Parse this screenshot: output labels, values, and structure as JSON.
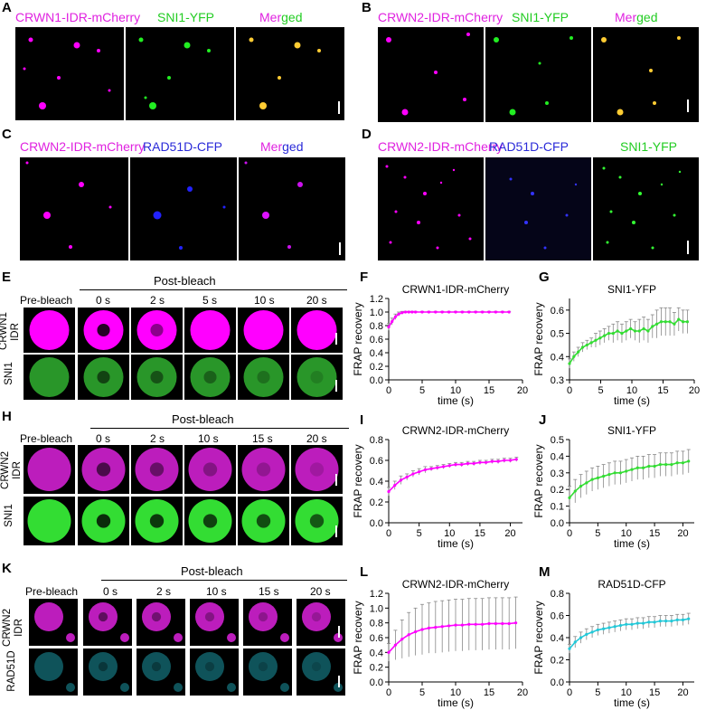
{
  "panels": {
    "A": {
      "letter": "A",
      "labels": [
        {
          "text": "CRWN1-IDR-mCherry",
          "color": "#e022e0"
        },
        {
          "text": "SNI1-YFP",
          "color": "#22cc22"
        },
        {
          "text_a": "Mer",
          "text_b": "ged",
          "color_a": "#e022e0",
          "color_b": "#22cc22"
        }
      ]
    },
    "B": {
      "letter": "B",
      "labels": [
        {
          "text": "CRWN2-IDR-mCherry",
          "color": "#e022e0"
        },
        {
          "text": "SNI1-YFP",
          "color": "#22cc22"
        },
        {
          "text_a": "Mer",
          "text_b": "ged",
          "color_a": "#e022e0",
          "color_b": "#22cc22"
        }
      ]
    },
    "C": {
      "letter": "C",
      "labels": [
        {
          "text": "CRWN2-IDR-mCherry",
          "color": "#e022e0"
        },
        {
          "text": "RAD51D-CFP",
          "color": "#2a2ad8"
        },
        {
          "text_a": "Mer",
          "text_b": "ged",
          "color_a": "#e022e0",
          "color_b": "#2a2ad8"
        }
      ]
    },
    "D": {
      "letter": "D",
      "labels": [
        {
          "text": "CRWN2-IDR-mCherry",
          "color": "#e022e0"
        },
        {
          "text": "RAD51D-CFP",
          "color": "#2a2ad8"
        },
        {
          "text": "SNI1-YFP",
          "color": "#22cc22"
        }
      ]
    },
    "E": {
      "letter": "E",
      "post_bleach": "Post-bleach",
      "pre_bleach": "Pre-bleach",
      "times": [
        "0 s",
        "2 s",
        "5 s",
        "10 s",
        "20 s"
      ],
      "rows": [
        "CRWN1\nIDR",
        "SNI1"
      ]
    },
    "H": {
      "letter": "H",
      "post_bleach": "Post-bleach",
      "pre_bleach": "Pre-bleach",
      "times": [
        "0 s",
        "2 s",
        "10 s",
        "15 s",
        "20 s"
      ],
      "rows": [
        "CRWN2\nIDR",
        "SNI1"
      ]
    },
    "K": {
      "letter": "K",
      "post_bleach": "Post-bleach",
      "pre_bleach": "Pre-bleach",
      "times": [
        "0 s",
        "2 s",
        "10 s",
        "15 s",
        "20 s"
      ],
      "rows": [
        "CRWN2\nIDR",
        "RAD51D"
      ]
    }
  },
  "colors": {
    "magenta": "#ff00ff",
    "green": "#33dd33",
    "blue": "#1a1aff",
    "cyan": "#22b8c8",
    "error": "#888888"
  },
  "chart_data": [
    {
      "letter": "F",
      "type": "line",
      "title": "CRWN1-IDR-mCherry",
      "xlabel": "time (s)",
      "ylabel": "FRAP recovery",
      "xlim": [
        0,
        20
      ],
      "ylim": [
        0.0,
        1.2
      ],
      "xticks": [
        0,
        5,
        10,
        15,
        20
      ],
      "yticks": [
        0.0,
        0.2,
        0.4,
        0.6,
        0.8,
        1.0,
        1.2
      ],
      "ytick_labels": [
        "0.0",
        "0.2",
        "0.4",
        "0.6",
        "0.8",
        "1.0",
        "1.2"
      ],
      "color": "#ff00ff",
      "x": [
        0,
        0.5,
        1,
        1.5,
        2,
        2.5,
        3,
        3.5,
        4,
        5,
        6,
        7,
        8,
        9,
        10,
        11,
        12,
        13,
        14,
        15,
        16,
        17,
        18
      ],
      "y": [
        0.78,
        0.86,
        0.93,
        0.97,
        0.99,
        1.0,
        1.0,
        1.0,
        1.0,
        1.0,
        1.0,
        1.0,
        1.0,
        1.0,
        1.0,
        1.0,
        1.0,
        1.0,
        1.0,
        1.0,
        1.0,
        1.0,
        1.0
      ],
      "err": [
        0.05,
        0.05,
        0.04,
        0.03,
        0.02,
        0.01,
        0.01,
        0.01,
        0.01,
        0.01,
        0.01,
        0.01,
        0.01,
        0.01,
        0.01,
        0.01,
        0.01,
        0.01,
        0.01,
        0.01,
        0.01,
        0.01,
        0.01
      ]
    },
    {
      "letter": "G",
      "type": "line",
      "title": "SNI1-YFP",
      "xlabel": "time (s)",
      "ylabel": "FRAP recovery",
      "xlim": [
        0,
        20
      ],
      "ylim": [
        0.3,
        0.65
      ],
      "xticks": [
        0,
        5,
        10,
        15,
        20
      ],
      "yticks": [
        0.3,
        0.4,
        0.5,
        0.6
      ],
      "ytick_labels": [
        "0.3",
        "0.4",
        "0.5",
        "0.6"
      ],
      "color": "#33dd33",
      "x": [
        0,
        0.7,
        1.4,
        2.1,
        2.8,
        3.5,
        4.2,
        4.9,
        5.6,
        6.3,
        7,
        7.7,
        8.4,
        9.1,
        9.8,
        10.5,
        11.2,
        11.9,
        12.6,
        13.3,
        14,
        14.7,
        15.4,
        16.1,
        16.8,
        17.5,
        18.2,
        18.9
      ],
      "y": [
        0.37,
        0.4,
        0.42,
        0.44,
        0.45,
        0.46,
        0.47,
        0.48,
        0.49,
        0.5,
        0.5,
        0.51,
        0.5,
        0.51,
        0.52,
        0.51,
        0.51,
        0.52,
        0.51,
        0.53,
        0.54,
        0.55,
        0.55,
        0.55,
        0.54,
        0.56,
        0.55,
        0.55
      ],
      "err": [
        0.02,
        0.02,
        0.02,
        0.02,
        0.02,
        0.02,
        0.03,
        0.03,
        0.03,
        0.03,
        0.04,
        0.04,
        0.04,
        0.04,
        0.04,
        0.04,
        0.05,
        0.05,
        0.05,
        0.05,
        0.06,
        0.06,
        0.06,
        0.06,
        0.05,
        0.05,
        0.05,
        0.05
      ]
    },
    {
      "letter": "I",
      "type": "line",
      "title": "CRWN2-IDR-mCherry",
      "xlabel": "time (s)",
      "ylabel": "FRAP recovery",
      "xlim": [
        0,
        22
      ],
      "ylim": [
        0.0,
        0.8
      ],
      "xticks": [
        0,
        5,
        10,
        15,
        20
      ],
      "yticks": [
        0.0,
        0.2,
        0.4,
        0.6,
        0.8
      ],
      "ytick_labels": [
        "0.0",
        "0.2",
        "0.4",
        "0.6",
        "0.8"
      ],
      "color": "#ff00ff",
      "x": [
        0,
        1,
        2,
        3,
        4,
        5,
        6,
        7,
        8,
        9,
        10,
        11,
        12,
        13,
        14,
        15,
        16,
        17,
        18,
        19,
        20,
        21
      ],
      "y": [
        0.3,
        0.36,
        0.41,
        0.44,
        0.47,
        0.49,
        0.51,
        0.52,
        0.53,
        0.54,
        0.55,
        0.56,
        0.56,
        0.57,
        0.57,
        0.58,
        0.58,
        0.59,
        0.59,
        0.6,
        0.6,
        0.61
      ],
      "err": [
        0.04,
        0.04,
        0.04,
        0.03,
        0.03,
        0.03,
        0.03,
        0.02,
        0.02,
        0.02,
        0.02,
        0.02,
        0.02,
        0.02,
        0.02,
        0.02,
        0.02,
        0.02,
        0.02,
        0.02,
        0.02,
        0.02
      ]
    },
    {
      "letter": "J",
      "type": "line",
      "title": "SNI1-YFP",
      "xlabel": "time (s)",
      "ylabel": "FRAP recovery",
      "xlim": [
        0,
        22
      ],
      "ylim": [
        0.0,
        0.5
      ],
      "xticks": [
        0,
        5,
        10,
        15,
        20
      ],
      "yticks": [
        0.0,
        0.1,
        0.2,
        0.3,
        0.4,
        0.5
      ],
      "ytick_labels": [
        "0.0",
        "0.1",
        "0.2",
        "0.3",
        "0.4",
        "0.5"
      ],
      "color": "#33dd33",
      "x": [
        0,
        1,
        2,
        3,
        4,
        5,
        6,
        7,
        8,
        9,
        10,
        11,
        12,
        13,
        14,
        15,
        16,
        17,
        18,
        19,
        20,
        21
      ],
      "y": [
        0.15,
        0.19,
        0.22,
        0.24,
        0.26,
        0.27,
        0.28,
        0.29,
        0.3,
        0.3,
        0.31,
        0.32,
        0.33,
        0.33,
        0.34,
        0.34,
        0.35,
        0.35,
        0.35,
        0.36,
        0.36,
        0.37
      ],
      "err": [
        0.07,
        0.07,
        0.07,
        0.07,
        0.07,
        0.07,
        0.07,
        0.07,
        0.07,
        0.07,
        0.07,
        0.07,
        0.07,
        0.07,
        0.07,
        0.07,
        0.07,
        0.07,
        0.07,
        0.07,
        0.07,
        0.07
      ]
    },
    {
      "letter": "L",
      "type": "line",
      "title": "CRWN2-IDR-mCherry",
      "xlabel": "time (s)",
      "ylabel": "FRAP recovery",
      "xlim": [
        0,
        20
      ],
      "ylim": [
        0.0,
        1.2
      ],
      "xticks": [
        0,
        5,
        10,
        15,
        20
      ],
      "yticks": [
        0.0,
        0.2,
        0.4,
        0.6,
        0.8,
        1.0,
        1.2
      ],
      "ytick_labels": [
        "0.0",
        "0.2",
        "0.4",
        "0.6",
        "0.8",
        "1.0",
        "1.2"
      ],
      "color": "#ff00ff",
      "x": [
        0,
        1,
        2,
        3,
        4,
        5,
        6,
        7,
        8,
        9,
        10,
        11,
        12,
        13,
        14,
        15,
        16,
        17,
        18,
        19
      ],
      "y": [
        0.4,
        0.5,
        0.58,
        0.64,
        0.68,
        0.71,
        0.73,
        0.74,
        0.75,
        0.76,
        0.77,
        0.77,
        0.78,
        0.78,
        0.78,
        0.79,
        0.79,
        0.79,
        0.79,
        0.8
      ],
      "err": [
        0.12,
        0.2,
        0.26,
        0.3,
        0.32,
        0.34,
        0.34,
        0.35,
        0.35,
        0.35,
        0.35,
        0.35,
        0.35,
        0.35,
        0.35,
        0.35,
        0.35,
        0.35,
        0.35,
        0.35
      ]
    },
    {
      "letter": "M",
      "type": "line",
      "title": "RAD51D-CFP",
      "xlabel": "time (s)",
      "ylabel": "FRAP recovery",
      "xlim": [
        0,
        22
      ],
      "ylim": [
        0.0,
        0.8
      ],
      "xticks": [
        0,
        5,
        10,
        15,
        20
      ],
      "yticks": [
        0.0,
        0.2,
        0.4,
        0.6,
        0.8
      ],
      "ytick_labels": [
        "0.0",
        "0.2",
        "0.4",
        "0.6",
        "0.8"
      ],
      "color": "#22c8d8",
      "x": [
        0,
        1,
        2,
        3,
        4,
        5,
        6,
        7,
        8,
        9,
        10,
        11,
        12,
        13,
        14,
        15,
        16,
        17,
        18,
        19,
        20,
        21
      ],
      "y": [
        0.3,
        0.36,
        0.4,
        0.43,
        0.45,
        0.47,
        0.48,
        0.49,
        0.5,
        0.51,
        0.52,
        0.52,
        0.53,
        0.53,
        0.54,
        0.54,
        0.55,
        0.55,
        0.55,
        0.56,
        0.56,
        0.57
      ],
      "err": [
        0.04,
        0.05,
        0.05,
        0.05,
        0.05,
        0.05,
        0.05,
        0.05,
        0.05,
        0.05,
        0.05,
        0.05,
        0.05,
        0.05,
        0.05,
        0.05,
        0.05,
        0.05,
        0.05,
        0.05,
        0.05,
        0.05
      ]
    }
  ]
}
